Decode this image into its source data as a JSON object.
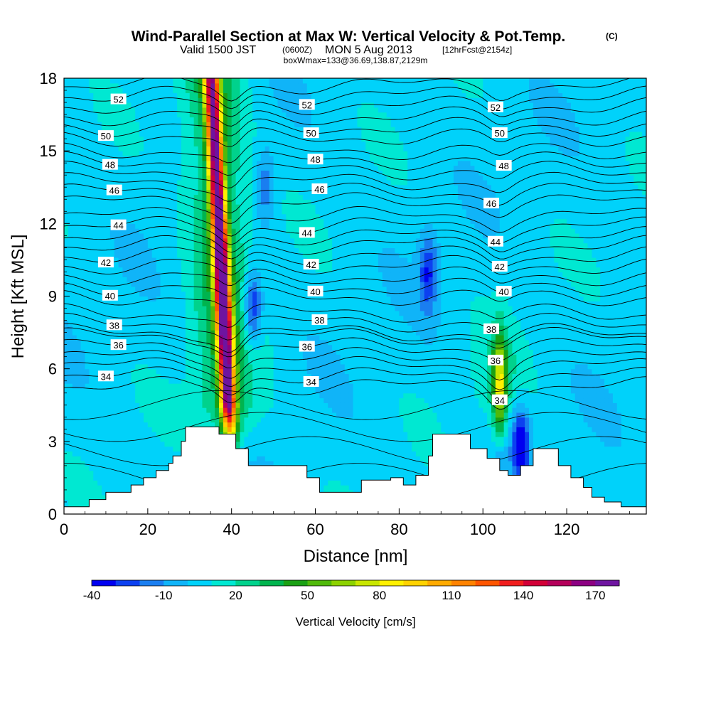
{
  "title": {
    "main": "Wind-Parallel Section at Max W: Vertical Velocity & Pot.Temp.",
    "copyright": "(C)",
    "valid_prefix": "Valid 1500 JST",
    "valid_utc": "(0600Z)",
    "valid_date": "MON 5 Aug 2013",
    "forecast": "[12hrFcst@2154z]",
    "box_info": "boxWmax=133@36.69,138.87,2129m"
  },
  "chart_data": {
    "type": "heatmap",
    "xlabel": "Distance [nm]",
    "ylabel": "Height [Kft MSL]",
    "xlim": [
      0,
      139
    ],
    "ylim": [
      0,
      18
    ],
    "x_ticks": [
      "0",
      "20",
      "40",
      "60",
      "80",
      "100",
      "120"
    ],
    "y_ticks": [
      "0",
      "3",
      "6",
      "9",
      "12",
      "15",
      "18"
    ],
    "colorbar": {
      "label": "Vertical Velocity [cm/s]",
      "levels": [
        -40,
        -30,
        -20,
        -10,
        0,
        10,
        20,
        30,
        40,
        50,
        60,
        70,
        80,
        90,
        100,
        110,
        120,
        130,
        140,
        150,
        160,
        170,
        180
      ],
      "tick_labels": [
        "-40",
        "-10",
        "20",
        "50",
        "80",
        "110",
        "140",
        "170"
      ],
      "colors": [
        "#0000f0",
        "#0c40f0",
        "#1a7ef0",
        "#10b4f8",
        "#00d2fa",
        "#00e8d2",
        "#00d28c",
        "#00b44e",
        "#1aa014",
        "#50b90a",
        "#8cd200",
        "#c8e600",
        "#fff000",
        "#ffd200",
        "#ffaa00",
        "#ff8200",
        "#ff5500",
        "#f01e1e",
        "#d20037",
        "#b4005a",
        "#8c0082",
        "#6e14a0"
      ]
    },
    "terrain_kft": [
      [
        0,
        0.3
      ],
      [
        6,
        0.6
      ],
      [
        10,
        0.9
      ],
      [
        16,
        1.2
      ],
      [
        19,
        1.5
      ],
      [
        22,
        1.8
      ],
      [
        25,
        2.1
      ],
      [
        26,
        2.4
      ],
      [
        28,
        3.0
      ],
      [
        29,
        3.6
      ],
      [
        37,
        3.3
      ],
      [
        41,
        2.7
      ],
      [
        44,
        2.0
      ],
      [
        58,
        1.5
      ],
      [
        61,
        0.9
      ],
      [
        65,
        0.9
      ],
      [
        71,
        1.4
      ],
      [
        78,
        1.5
      ],
      [
        81,
        1.2
      ],
      [
        84,
        1.6
      ],
      [
        87,
        2.4
      ],
      [
        88,
        3.3
      ],
      [
        97,
        2.7
      ],
      [
        101,
        2.3
      ],
      [
        104,
        1.8
      ],
      [
        106,
        1.6
      ],
      [
        109,
        2.0
      ],
      [
        112,
        2.7
      ],
      [
        118,
        2.0
      ],
      [
        121,
        1.5
      ],
      [
        124,
        1.1
      ],
      [
        126,
        0.7
      ],
      [
        129,
        0.5
      ],
      [
        133,
        0.3
      ],
      [
        139,
        0.3
      ]
    ],
    "updrafts": [
      {
        "x_center_base": 40,
        "x_tilt_per_kft": -0.3,
        "z_base": 2.0,
        "z_top": 18,
        "peak": 170,
        "halfwidth": 1.8
      },
      {
        "x_center_base": 104,
        "x_tilt_per_kft": 0.0,
        "z_base": 2.5,
        "z_top": 6.5,
        "peak": 70,
        "halfwidth": 1.6
      }
    ],
    "downdrafts": [
      {
        "x": 45,
        "z": 8.5,
        "value": -40
      },
      {
        "x": 87,
        "z": 10.0,
        "value": -30
      },
      {
        "x": 109,
        "z": 3.0,
        "value": -40
      },
      {
        "x": 48,
        "z": 13.5,
        "value": -20
      }
    ],
    "theta_contours": [
      {
        "label": "34",
        "z": 5.7
      },
      {
        "label": "36",
        "z": 6.9
      },
      {
        "label": "38",
        "z": 7.9
      },
      {
        "label": "40",
        "z": 9.4
      },
      {
        "label": "42",
        "z": 10.7
      },
      {
        "label": "44",
        "z": 11.9
      },
      {
        "label": "46",
        "z": 13.3
      },
      {
        "label": "48",
        "z": 14.6
      },
      {
        "label": "50",
        "z": 16.0
      },
      {
        "label": "52",
        "z": 17.3
      }
    ]
  }
}
